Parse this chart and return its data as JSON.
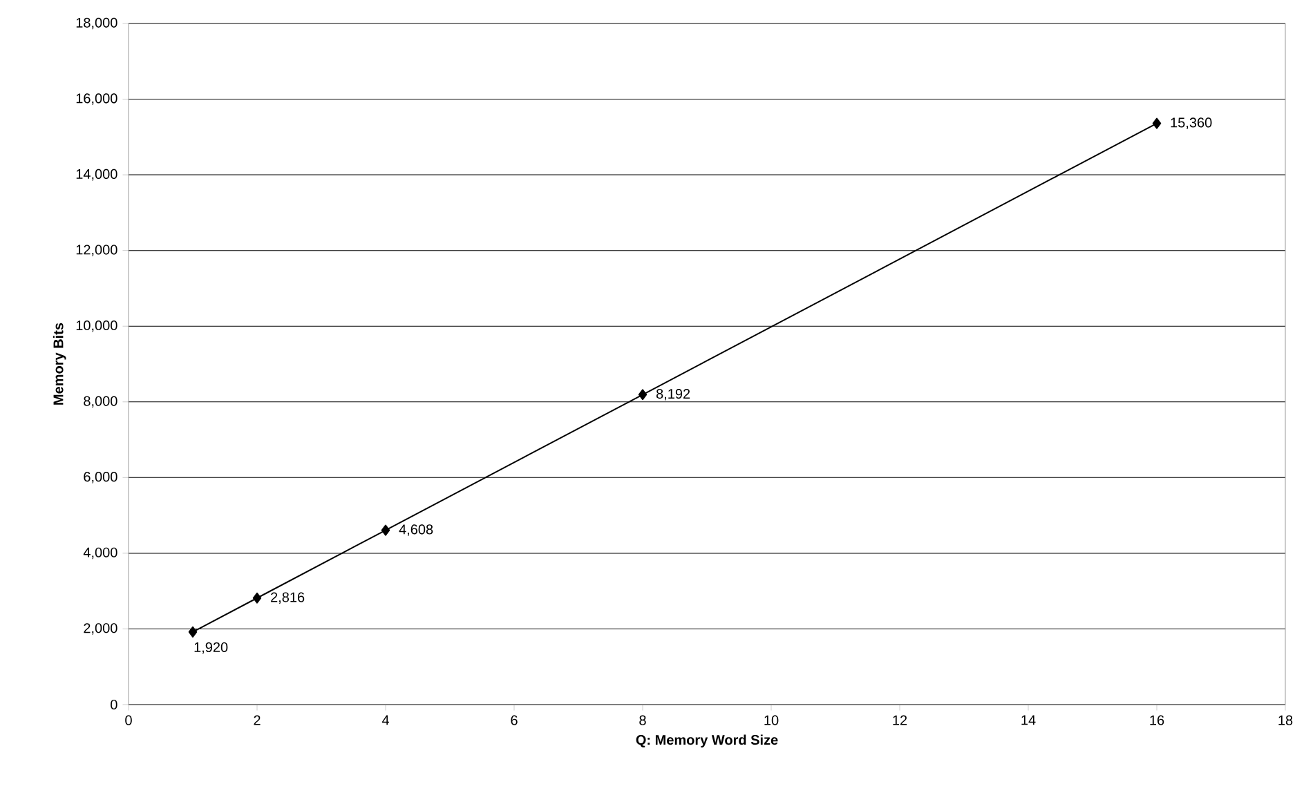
{
  "chart_data": {
    "type": "line",
    "xlabel": "Q: Memory Word Size",
    "ylabel": "Memory Bits",
    "x": [
      1,
      2,
      4,
      8,
      16
    ],
    "series": [
      {
        "color": "#000000",
        "values": [
          1920,
          2816,
          4608,
          8192,
          15360
        ],
        "value_labels": [
          "1,920",
          "2,816",
          "4,608",
          "8,192",
          "15,360"
        ]
      }
    ],
    "xlim": [
      0,
      18
    ],
    "ylim": [
      0,
      18000
    ],
    "xticks": [
      0,
      2,
      4,
      6,
      8,
      10,
      12,
      14,
      16,
      18
    ],
    "yticks": [
      0,
      {
        "value": 2000,
        "label": "2,000"
      },
      {
        "value": 4000,
        "label": "4,000"
      },
      {
        "value": 6000,
        "label": "6,000"
      },
      {
        "value": 8000,
        "label": "8,000"
      },
      {
        "value": 10000,
        "label": "10,000"
      },
      {
        "value": 12000,
        "label": "12,000"
      },
      {
        "value": 14000,
        "label": "14,000"
      },
      {
        "value": 16000,
        "label": "16,000"
      },
      {
        "value": 18000,
        "label": "18,000"
      }
    ],
    "grid": "y",
    "marker": "diamond",
    "line_style": "solid"
  }
}
